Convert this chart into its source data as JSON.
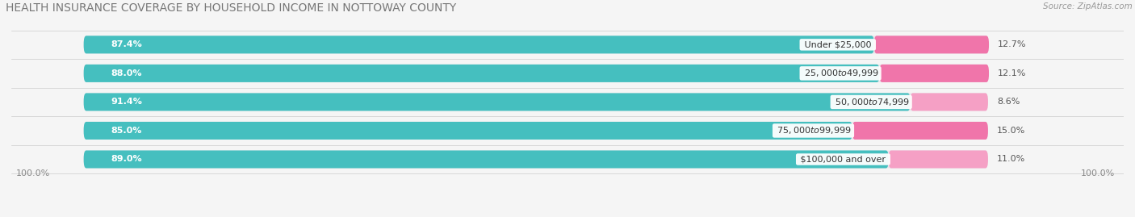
{
  "title": "HEALTH INSURANCE COVERAGE BY HOUSEHOLD INCOME IN NOTTOWAY COUNTY",
  "source": "Source: ZipAtlas.com",
  "categories": [
    "Under $25,000",
    "$25,000 to $49,999",
    "$50,000 to $74,999",
    "$75,000 to $99,999",
    "$100,000 and over"
  ],
  "with_coverage": [
    87.4,
    88.0,
    91.4,
    85.0,
    89.0
  ],
  "without_coverage": [
    12.7,
    12.1,
    8.6,
    15.0,
    11.0
  ],
  "color_with": "#45BFBF",
  "color_without_vals": [
    "#F075AA",
    "#F075AA",
    "#F5A0C5",
    "#F075AA",
    "#F5A0C5"
  ],
  "color_bg_bar": "#E8E8EC",
  "background_color": "#F5F5F5",
  "bar_height": 0.62,
  "legend_color_with": "#45BFBF",
  "legend_color_without": "#F075AA",
  "left_label": "100.0%",
  "right_label": "100.0%",
  "title_fontsize": 10,
  "label_fontsize": 8,
  "source_fontsize": 7.5,
  "tick_fontsize": 8
}
